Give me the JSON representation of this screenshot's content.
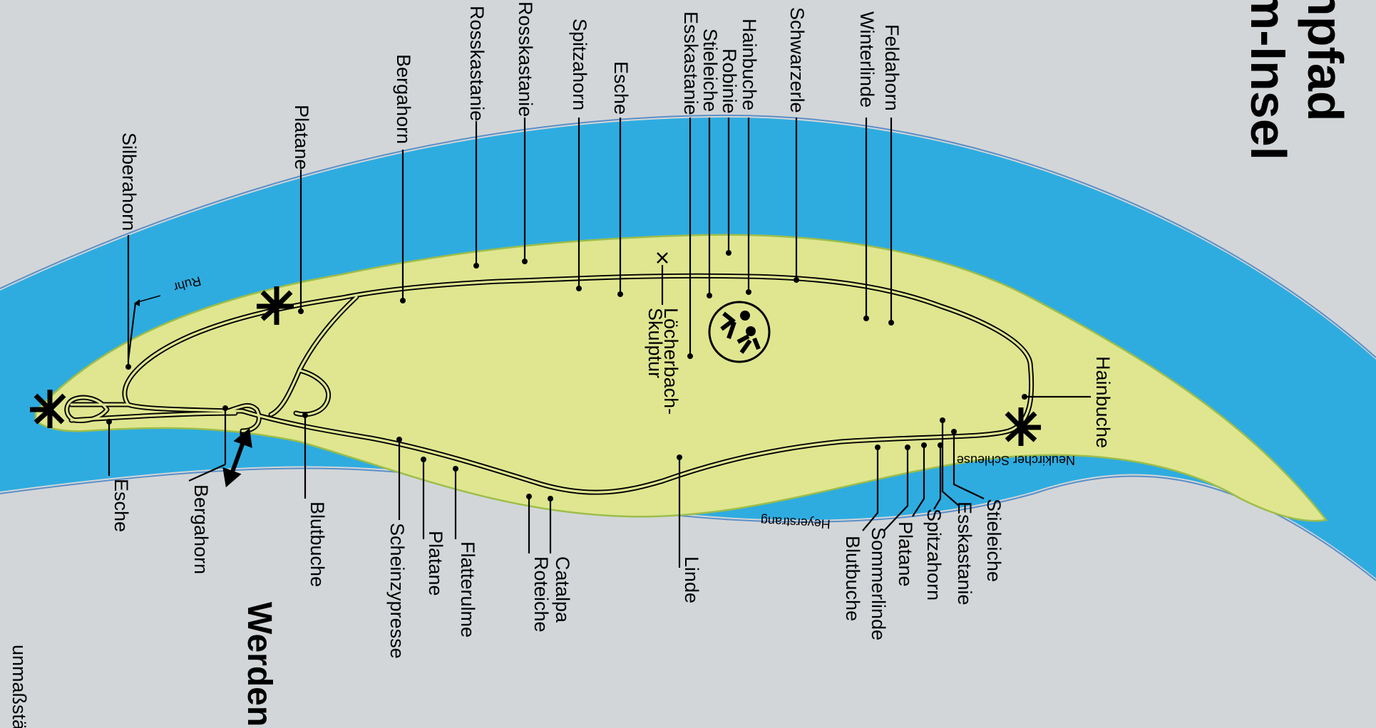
{
  "title": {
    "line1": "npfad",
    "line2": "m-Insel"
  },
  "town": "Werden",
  "scale_note": "unmaßstäbli",
  "water": {
    "river": "Ruhr",
    "channel": "Heyerstrang",
    "lock": "Neukircher Schleuse"
  },
  "sculpture": {
    "line1": "Löcherbach-",
    "line2": "Skulptur"
  },
  "colors": {
    "background": "#d3d6d8",
    "water": "#2eace0",
    "island": "#dfe68f",
    "island_edge": "#9dbd4a"
  },
  "trees_top": [
    "Silberahorn",
    "Platane",
    "Bergahorn",
    "Rosskastanie",
    "Rosskastanie",
    "Spitzahorn",
    "Esche",
    "Esskastanie",
    "Stieleiche",
    "Robinie",
    "Hainbuche",
    "Schwarzerle",
    "Winterlinde",
    "Feldahorn"
  ],
  "trees_right": [
    "Hainbuche"
  ],
  "trees_bottom": [
    "Esche",
    "Bergahorn",
    "Blutbuche",
    "Scheinzypresse",
    "Platane",
    "Flatterulme",
    "Roteiche",
    "Catalpa",
    "Linde",
    "Blutbuche",
    "Sommerlinde",
    "Platane",
    "Spitzahorn",
    "Esskastanie",
    "Stieleiche"
  ],
  "icons": [
    "windmill-icon",
    "playground-icon",
    "bridge-arrow-icon",
    "sculpture-marker-icon"
  ]
}
